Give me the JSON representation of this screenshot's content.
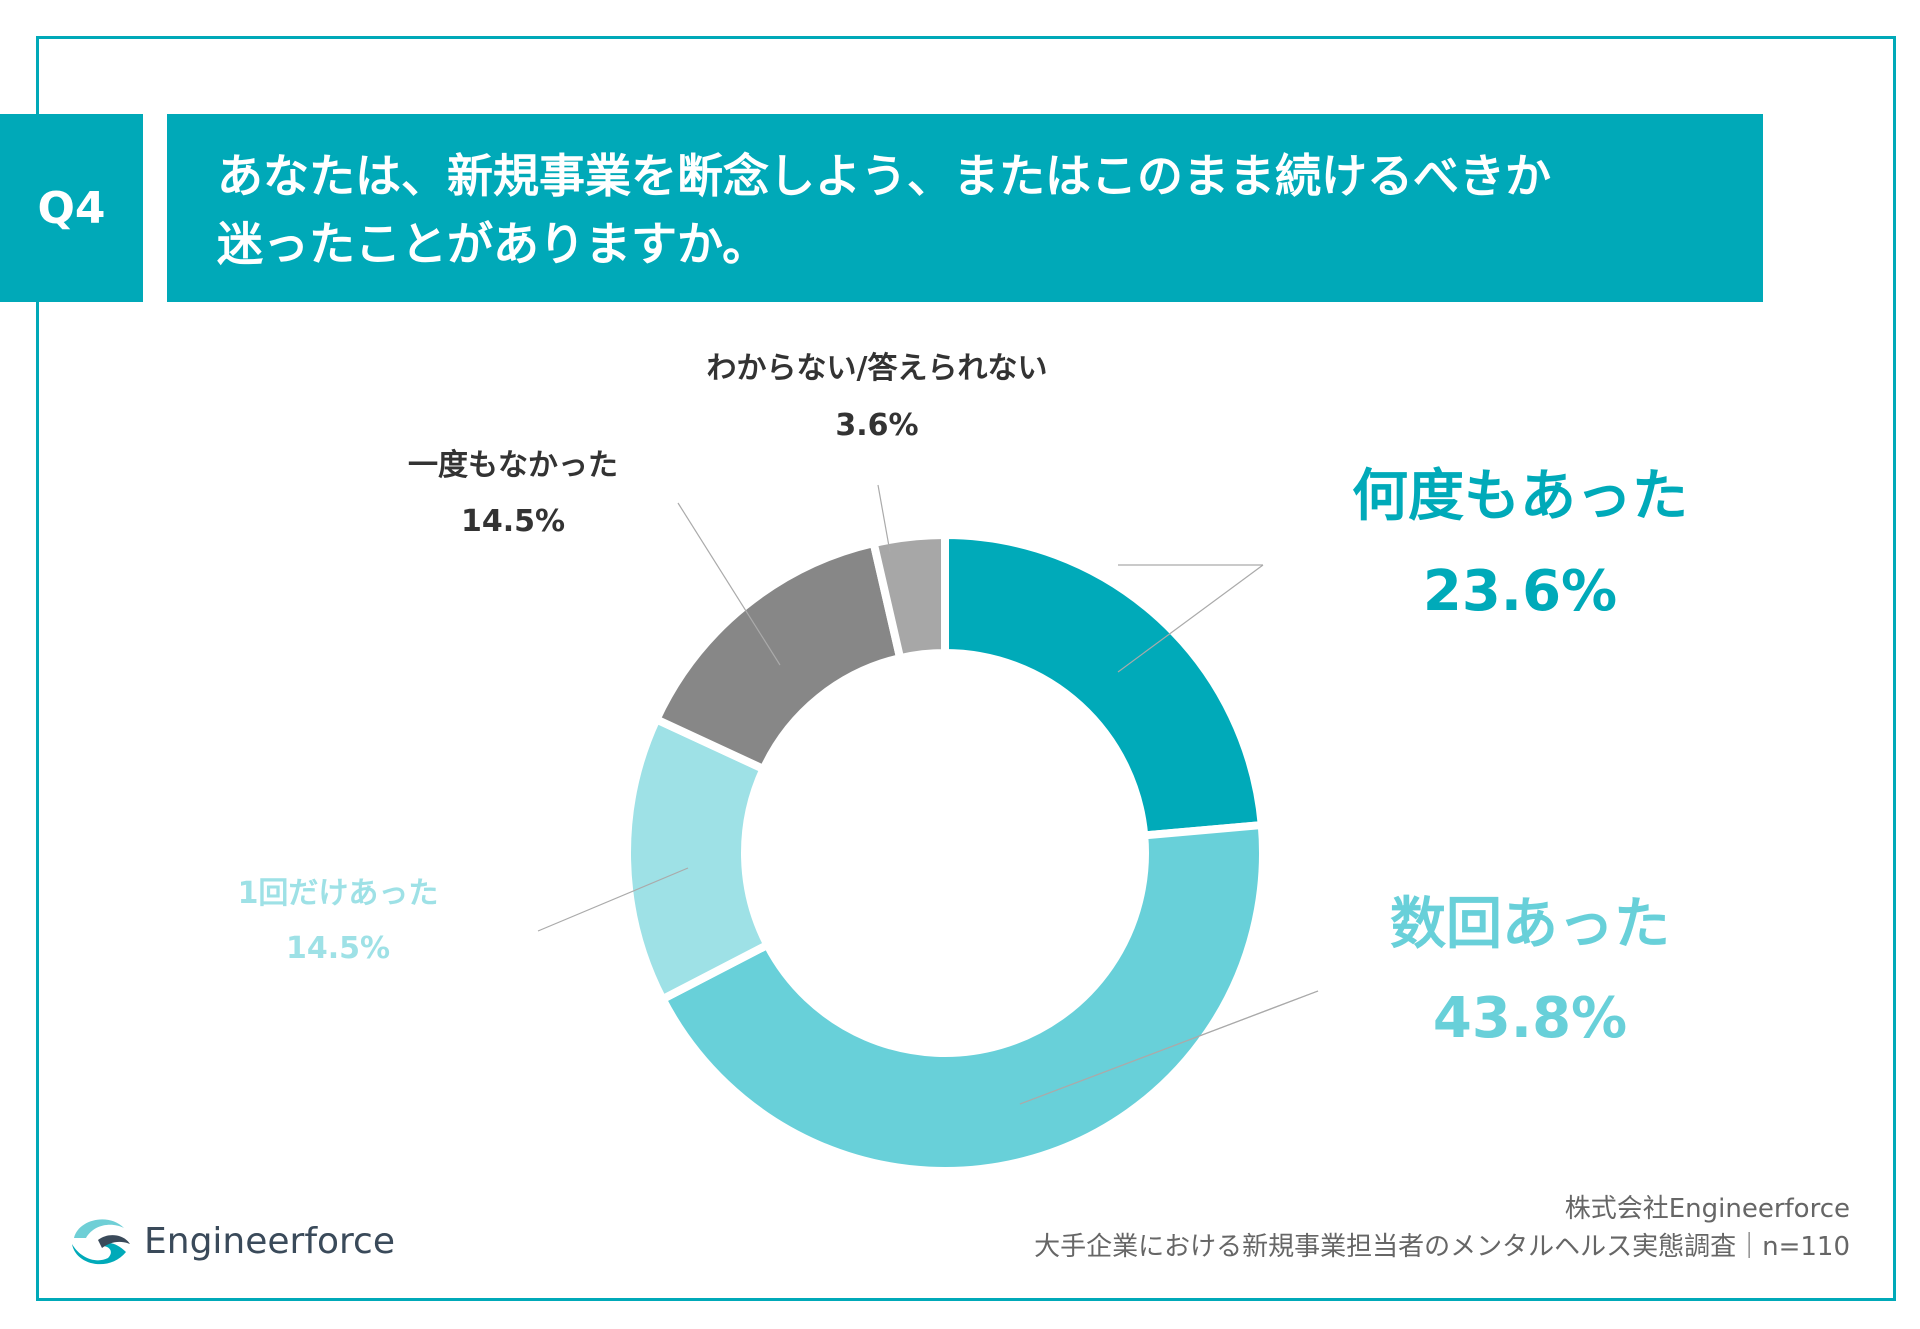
{
  "question": {
    "badge": "Q4",
    "line1": "あなたは、新規事業を断念しよう、またはこのまま続けるべきか",
    "line2": "迷ったことがありますか。"
  },
  "chart_data": {
    "type": "pie",
    "donut": true,
    "categories": [
      "何度もあった",
      "数回あった",
      "1回だけあった",
      "一度もなかった",
      "わからない/答えられない"
    ],
    "values": [
      23.6,
      43.8,
      14.5,
      14.5,
      3.6
    ],
    "value_labels": [
      "23.6%",
      "43.8%",
      "14.5%",
      "14.5%",
      "3.6%"
    ],
    "colors": [
      "#00aab9",
      "#68d0d9",
      "#9ee1e6",
      "#878787",
      "#a7a7a7"
    ],
    "label_colors": [
      "#00aab9",
      "#68d0d9",
      "#9ee1e6",
      "#333333",
      "#333333"
    ],
    "title": "あなたは、新規事業を断念しよう、またはこのまま続けるべきか迷ったことがありますか。"
  },
  "footer": {
    "company": "株式会社Engineerforce",
    "survey": "大手企業における新規事業担当者のメンタルヘルス実態調査｜n=110"
  },
  "logo": {
    "name": "Engineerforce",
    "icon": "bird-wave-icon"
  }
}
